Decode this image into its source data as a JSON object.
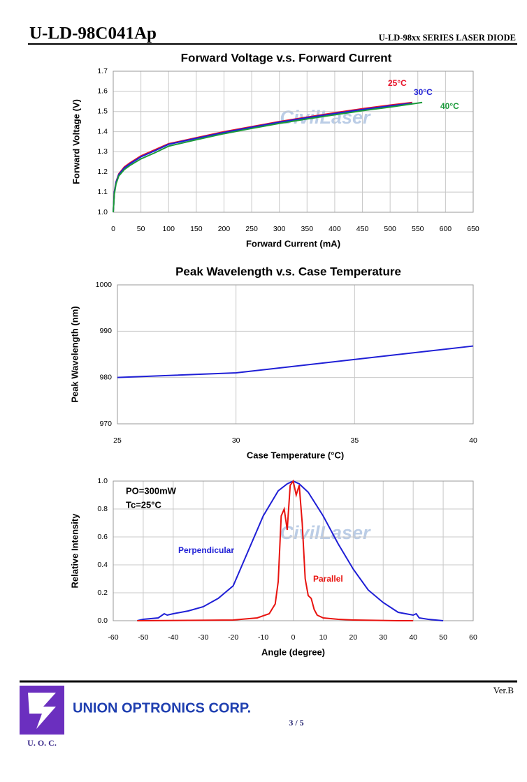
{
  "header": {
    "title": "U-LD-98C041Ap",
    "series_name": "U-LD-98xx SERIES LASER DIODE"
  },
  "chart_data": [
    {
      "type": "line",
      "title": "Forward Voltage v.s. Forward Current",
      "x_label": "Forward Current (mA)",
      "y_label": "Forward Voltage (V)",
      "watermark": "CivilLaser",
      "xlim": [
        0,
        650
      ],
      "xticks": [
        0,
        50,
        100,
        150,
        200,
        250,
        300,
        350,
        400,
        450,
        500,
        550,
        600,
        650
      ],
      "ylim": [
        1.0,
        1.7
      ],
      "yticks": [
        {
          "value": 1.0,
          "label": "1.0"
        },
        1.1,
        1.2,
        1.3,
        1.4,
        1.5,
        1.6,
        1.7
      ],
      "grid": true,
      "series": [
        {
          "name": "25°C",
          "color": "#e8132a",
          "x": [
            0,
            2,
            5,
            10,
            20,
            30,
            50,
            75,
            100,
            150,
            200,
            250,
            300,
            350,
            400,
            450,
            500,
            540
          ],
          "values": [
            1.0,
            1.1,
            1.15,
            1.19,
            1.225,
            1.245,
            1.28,
            1.31,
            1.34,
            1.37,
            1.4,
            1.425,
            1.45,
            1.472,
            1.494,
            1.514,
            1.532,
            1.545
          ]
        },
        {
          "name": "30°C",
          "color": "#1f1fd6",
          "x": [
            0,
            2,
            5,
            10,
            20,
            30,
            50,
            75,
            100,
            150,
            200,
            250,
            300,
            350,
            400,
            450,
            500,
            540
          ],
          "values": [
            1.0,
            1.1,
            1.148,
            1.187,
            1.22,
            1.24,
            1.275,
            1.305,
            1.337,
            1.367,
            1.396,
            1.422,
            1.447,
            1.469,
            1.49,
            1.51,
            1.528,
            1.541
          ]
        },
        {
          "name": "40°C",
          "color": "#1a9a3a",
          "x": [
            0,
            2,
            5,
            10,
            20,
            30,
            50,
            75,
            100,
            150,
            200,
            250,
            300,
            350,
            400,
            450,
            500,
            558
          ],
          "values": [
            1.0,
            1.09,
            1.14,
            1.18,
            1.212,
            1.232,
            1.265,
            1.295,
            1.328,
            1.36,
            1.39,
            1.416,
            1.441,
            1.463,
            1.484,
            1.504,
            1.522,
            1.545
          ]
        }
      ]
    },
    {
      "type": "line",
      "title": "Peak Wavelength v.s. Case Temperature",
      "x_label": "Case Temperature (°C)",
      "y_label": "Peak Wavelength (nm)",
      "xlim": [
        25,
        40
      ],
      "xticks": [
        25,
        30,
        35,
        40
      ],
      "ylim": [
        970,
        1000
      ],
      "yticks": [
        970,
        980,
        990,
        1000
      ],
      "grid": true,
      "series": [
        {
          "color": "#1f1fd6",
          "x": [
            25,
            30,
            40
          ],
          "values": [
            980,
            981,
            986.8
          ]
        }
      ]
    },
    {
      "type": "line",
      "title": null,
      "x_label": "Angle (degree)",
      "y_label": "Relative Intensity",
      "watermark": "CivilLaser",
      "annotations": [
        "PO=300mW",
        "Tc=25°C"
      ],
      "xlim": [
        -60,
        60
      ],
      "xticks": [
        -60,
        -50,
        -40,
        -30,
        -20,
        -10,
        0,
        10,
        20,
        30,
        40,
        50,
        60
      ],
      "ylim": [
        0,
        1.0
      ],
      "yticks": [
        {
          "value": 0,
          "label": "0.0"
        },
        0.2,
        0.4,
        0.6,
        0.8,
        {
          "value": 1.0,
          "label": "1.0"
        }
      ],
      "grid": true,
      "series": [
        {
          "name": "Perpendicular",
          "color": "#1f1fd6",
          "x": [
            -52,
            -50,
            -45,
            -43,
            -42,
            -40,
            -35,
            -30,
            -25,
            -20,
            -15,
            -10,
            -5,
            -2,
            0,
            2,
            5,
            10,
            15,
            20,
            25,
            30,
            35,
            40,
            41,
            42,
            45,
            50
          ],
          "values": [
            0,
            0.01,
            0.02,
            0.05,
            0.04,
            0.05,
            0.07,
            0.1,
            0.16,
            0.25,
            0.5,
            0.75,
            0.93,
            0.98,
            1.0,
            0.98,
            0.92,
            0.75,
            0.55,
            0.37,
            0.22,
            0.13,
            0.06,
            0.04,
            0.05,
            0.02,
            0.01,
            0
          ]
        },
        {
          "name": "Parallel",
          "color": "#e8130f",
          "x": [
            -52,
            -20,
            -12,
            -8,
            -6,
            -5,
            -4,
            -3,
            -2,
            -1,
            0,
            1,
            2,
            3,
            4,
            5,
            6,
            7,
            8,
            10,
            15,
            20,
            35,
            40
          ],
          "values": [
            0,
            0.005,
            0.02,
            0.05,
            0.12,
            0.28,
            0.75,
            0.8,
            0.65,
            0.97,
            1.0,
            0.9,
            0.97,
            0.7,
            0.3,
            0.18,
            0.16,
            0.08,
            0.04,
            0.02,
            0.01,
            0.005,
            0,
            0
          ]
        }
      ]
    }
  ],
  "footer": {
    "version": "Ver.B",
    "company": "UNION OPTRONICS CORP.",
    "logo_text": "U. O. C.",
    "page": "3 / 5"
  }
}
